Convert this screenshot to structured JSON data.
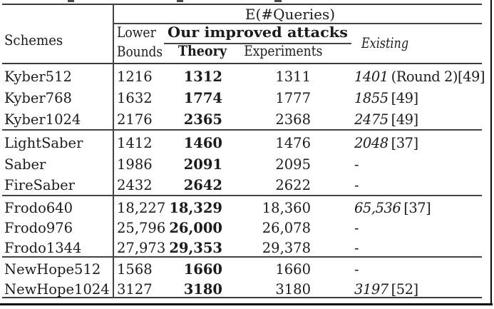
{
  "table": {
    "top_group_header": "E(#Queries)",
    "schemes_header": "Schemes",
    "lower_line1": "Lower",
    "lower_line2": "Bounds",
    "improved_header": "Our improved attacks",
    "theory_header": "Theory",
    "experiments_header": "Experiments",
    "existing_header": "Existing",
    "groups": [
      {
        "rows": [
          {
            "scheme": "Kyber512",
            "lower": "1216",
            "theory": "1312",
            "experiments": "1311",
            "existing": {
              "em": "1401",
              "plain": "(Round 2)[49]"
            }
          },
          {
            "scheme": "Kyber768",
            "lower": "1632",
            "theory": "1774",
            "experiments": "1777",
            "existing": {
              "em": "1855",
              "plain": "[49]"
            }
          },
          {
            "scheme": "Kyber1024",
            "lower": "2176",
            "theory": "2365",
            "experiments": "2368",
            "existing": {
              "em": "2475",
              "plain": "[49]"
            }
          }
        ]
      },
      {
        "rows": [
          {
            "scheme": "LightSaber",
            "lower": "1412",
            "theory": "1460",
            "experiments": "1476",
            "existing": {
              "em": "2048",
              "plain": "[37]"
            }
          },
          {
            "scheme": "Saber",
            "lower": "1986",
            "theory": "2091",
            "experiments": "2095",
            "existing": {
              "plain": "-"
            }
          },
          {
            "scheme": "FireSaber",
            "lower": "2432",
            "theory": "2642",
            "experiments": "2622",
            "existing": {
              "plain": "-"
            }
          }
        ]
      },
      {
        "rows": [
          {
            "scheme": "Frodo640",
            "lower": "18,227",
            "theory": "18,329",
            "experiments": "18,360",
            "existing": {
              "em": "65,536",
              "plain": "[37]"
            }
          },
          {
            "scheme": "Frodo976",
            "lower": "25,796",
            "theory": "26,000",
            "experiments": "26,078",
            "existing": {
              "plain": "-"
            }
          },
          {
            "scheme": "Frodo1344",
            "lower": "27,973",
            "theory": "29,353",
            "experiments": "29,378",
            "existing": {
              "plain": "-"
            }
          }
        ]
      },
      {
        "rows": [
          {
            "scheme": "NewHope512",
            "lower": "1568",
            "theory": "1660",
            "experiments": "1660",
            "existing": {
              "plain": "-"
            }
          },
          {
            "scheme": "NewHope1024",
            "lower": "3127",
            "theory": "3180",
            "experiments": "3180",
            "existing": {
              "em": "3197",
              "plain": "[52]"
            }
          }
        ]
      }
    ]
  },
  "colors": {
    "rule": "#444444",
    "heavy_rule": "#3a3a3a",
    "frame": "#0a0a0a",
    "text": "#1c1c1c"
  }
}
